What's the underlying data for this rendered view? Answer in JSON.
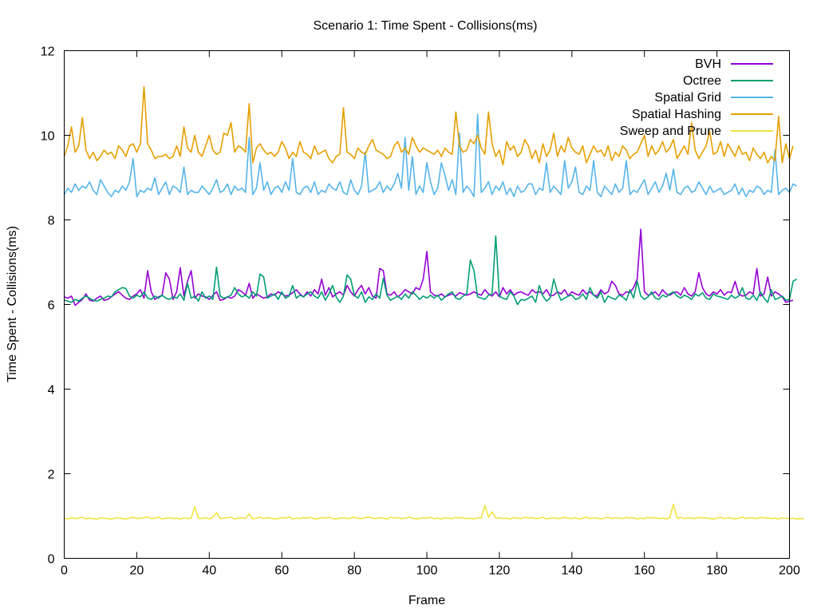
{
  "chart_data": {
    "type": "line",
    "title": "Scenario 1: Time Spent - Collisions(ms)",
    "xlabel": "Frame",
    "ylabel": "Time Spent - Collisions(ms)",
    "xlim": [
      0,
      200
    ],
    "ylim": [
      0,
      12
    ],
    "xticks": [
      0,
      20,
      40,
      60,
      80,
      100,
      120,
      140,
      160,
      180,
      200
    ],
    "yticks": [
      0,
      2,
      4,
      6,
      8,
      10,
      12
    ],
    "grid": false,
    "legend_position": "top-right",
    "x_step": 1,
    "series": [
      {
        "name": "BVH",
        "color": "#9400d3",
        "values": [
          6.18,
          6.15,
          6.2,
          5.98,
          6.05,
          6.12,
          6.25,
          6.1,
          6.08,
          6.15,
          6.2,
          6.1,
          6.12,
          6.18,
          6.25,
          6.3,
          6.22,
          6.15,
          6.12,
          6.2,
          6.25,
          6.35,
          6.15,
          6.8,
          6.3,
          6.12,
          6.18,
          6.22,
          6.75,
          6.6,
          6.12,
          6.3,
          6.87,
          6.2,
          6.55,
          6.8,
          6.15,
          6.25,
          6.2,
          6.18,
          6.12,
          6.22,
          6.3,
          6.1,
          6.12,
          6.18,
          6.15,
          6.2,
          6.35,
          6.3,
          6.22,
          6.5,
          6.15,
          6.25,
          6.2,
          6.15,
          6.18,
          6.25,
          6.22,
          6.3,
          6.25,
          6.2,
          6.22,
          6.28,
          6.35,
          6.25,
          6.18,
          6.3,
          6.2,
          6.35,
          6.25,
          6.6,
          6.22,
          6.4,
          6.18,
          6.25,
          6.3,
          6.22,
          6.45,
          6.3,
          6.2,
          6.35,
          6.45,
          6.25,
          6.4,
          6.2,
          6.15,
          6.85,
          6.8,
          6.25,
          6.22,
          6.3,
          6.18,
          6.25,
          6.35,
          6.3,
          6.25,
          6.4,
          6.35,
          6.6,
          7.25,
          6.3,
          6.22,
          6.2,
          6.25,
          6.18,
          6.22,
          6.25,
          6.2,
          6.28,
          6.25,
          6.22,
          6.25,
          6.3,
          6.25,
          6.22,
          6.35,
          6.25,
          6.2,
          6.3,
          6.18,
          6.4,
          6.25,
          6.35,
          6.22,
          6.28,
          6.3,
          6.25,
          6.22,
          6.35,
          6.28,
          6.3,
          6.25,
          6.35,
          6.2,
          6.22,
          6.3,
          6.25,
          6.35,
          6.2,
          6.3,
          6.25,
          6.22,
          6.35,
          6.25,
          6.3,
          6.22,
          6.2,
          6.35,
          6.25,
          6.3,
          6.55,
          6.45,
          6.25,
          6.22,
          6.3,
          6.28,
          6.4,
          6.6,
          7.78,
          6.3,
          6.22,
          6.25,
          6.3,
          6.2,
          6.35,
          6.25,
          6.22,
          6.28,
          6.3,
          6.22,
          6.4,
          6.25,
          6.2,
          6.3,
          6.75,
          6.4,
          6.25,
          6.2,
          6.3,
          6.25,
          6.35,
          6.22,
          6.3,
          6.28,
          6.55,
          6.25,
          6.2,
          6.22,
          6.3,
          6.25,
          6.85,
          6.2,
          6.25,
          6.65,
          6.2,
          6.3,
          6.25,
          6.18,
          6.05,
          6.08,
          6.1
        ]
      },
      {
        "name": "Octree",
        "color": "#009e73",
        "values": [
          6.1,
          6.08,
          6.05,
          6.12,
          6.08,
          6.15,
          6.2,
          6.15,
          6.1,
          6.08,
          6.12,
          6.15,
          6.2,
          6.18,
          6.3,
          6.35,
          6.4,
          6.38,
          6.2,
          6.15,
          6.22,
          6.18,
          6.3,
          6.15,
          6.12,
          6.2,
          6.15,
          6.22,
          6.15,
          6.12,
          6.18,
          6.15,
          6.25,
          6.1,
          6.5,
          6.15,
          6.2,
          6.08,
          6.3,
          6.15,
          6.2,
          6.12,
          6.88,
          6.2,
          6.15,
          6.18,
          6.22,
          6.4,
          6.25,
          6.18,
          6.22,
          6.15,
          6.3,
          6.2,
          6.72,
          6.65,
          6.15,
          6.2,
          6.25,
          6.12,
          6.3,
          6.15,
          6.2,
          6.45,
          6.15,
          6.22,
          6.18,
          6.25,
          6.3,
          6.2,
          6.15,
          6.3,
          6.1,
          6.25,
          6.45,
          6.18,
          6.05,
          6.2,
          6.7,
          6.6,
          6.22,
          6.15,
          6.3,
          6.05,
          6.18,
          6.12,
          6.25,
          6.15,
          6.62,
          6.22,
          6.1,
          6.15,
          6.2,
          6.12,
          6.25,
          6.15,
          6.3,
          6.22,
          6.12,
          6.2,
          6.15,
          6.22,
          6.15,
          6.22,
          6.1,
          6.18,
          6.25,
          6.3,
          6.15,
          6.12,
          6.2,
          6.25,
          7.05,
          6.8,
          6.18,
          6.15,
          6.12,
          6.22,
          6.25,
          7.62,
          6.2,
          6.15,
          6.12,
          6.3,
          6.2,
          6.0,
          6.12,
          6.1,
          6.15,
          6.2,
          6.05,
          6.45,
          6.2,
          6.08,
          6.15,
          6.6,
          6.3,
          6.1,
          6.15,
          6.2,
          6.22,
          6.12,
          6.15,
          6.25,
          6.12,
          6.4,
          6.22,
          6.15,
          6.3,
          6.05,
          6.2,
          6.15,
          6.12,
          6.22,
          6.18,
          6.1,
          6.35,
          6.15,
          6.55,
          6.2,
          6.12,
          6.18,
          6.3,
          6.15,
          6.12,
          6.22,
          6.18,
          6.25,
          6.3,
          6.2,
          6.15,
          6.22,
          6.18,
          6.12,
          6.25,
          6.2,
          6.28,
          6.15,
          6.12,
          6.25,
          6.2,
          6.18,
          6.15,
          6.12,
          6.22,
          6.15,
          6.2,
          6.4,
          6.15,
          6.12,
          6.22,
          6.1,
          6.3,
          6.15,
          6.05,
          6.35,
          6.12,
          6.15,
          6.2,
          6.1,
          6.12,
          6.55,
          6.6
        ]
      },
      {
        "name": "Spatial Grid",
        "color": "#56b4e9",
        "values": [
          8.6,
          8.75,
          8.65,
          8.85,
          8.7,
          8.8,
          8.75,
          8.9,
          8.7,
          8.6,
          8.95,
          8.8,
          8.65,
          8.55,
          8.7,
          8.65,
          8.8,
          8.7,
          8.9,
          9.45,
          8.55,
          8.7,
          8.65,
          8.75,
          8.7,
          9.0,
          8.6,
          8.75,
          8.9,
          8.6,
          8.8,
          8.75,
          8.65,
          9.25,
          8.6,
          8.7,
          8.65,
          8.65,
          8.8,
          8.7,
          8.6,
          8.75,
          8.95,
          8.65,
          8.7,
          8.85,
          8.6,
          8.8,
          8.7,
          8.75,
          8.65,
          9.95,
          8.6,
          8.75,
          9.35,
          8.7,
          8.9,
          8.6,
          8.75,
          8.8,
          8.65,
          8.9,
          8.7,
          9.45,
          8.65,
          8.6,
          8.75,
          8.8,
          8.65,
          8.9,
          8.6,
          8.7,
          8.65,
          8.85,
          8.75,
          8.7,
          8.9,
          8.65,
          8.6,
          8.95,
          8.7,
          8.6,
          8.8,
          9.6,
          8.65,
          8.7,
          8.75,
          8.9,
          8.65,
          8.8,
          8.7,
          8.85,
          9.1,
          8.75,
          9.95,
          8.7,
          9.5,
          8.6,
          8.8,
          8.65,
          9.35,
          8.9,
          8.6,
          8.75,
          9.35,
          9.05,
          8.7,
          8.95,
          8.6,
          10.05,
          8.65,
          8.8,
          8.7,
          8.55,
          10.5,
          8.65,
          8.75,
          8.9,
          8.6,
          8.8,
          8.7,
          8.9,
          8.6,
          8.75,
          8.55,
          8.8,
          8.65,
          8.7,
          8.85,
          8.85,
          8.6,
          8.75,
          8.7,
          9.35,
          8.65,
          8.8,
          8.7,
          8.6,
          9.4,
          8.75,
          8.9,
          9.25,
          8.65,
          8.6,
          8.8,
          8.7,
          9.4,
          8.65,
          8.55,
          8.8,
          8.7,
          8.6,
          8.85,
          8.65,
          8.75,
          9.4,
          8.6,
          8.7,
          8.65,
          8.8,
          8.95,
          8.6,
          8.75,
          8.9,
          8.65,
          8.8,
          9.1,
          8.7,
          9.2,
          8.65,
          8.6,
          8.75,
          8.8,
          8.65,
          8.7,
          8.9,
          8.75,
          8.6,
          8.8,
          8.65,
          8.7,
          8.75,
          8.6,
          8.65,
          8.7,
          8.85,
          8.6,
          8.75,
          8.55,
          8.7,
          8.65,
          8.8,
          8.75,
          8.6,
          8.7,
          8.65,
          9.65,
          8.6,
          8.7,
          8.75,
          8.65,
          8.85,
          8.8
        ]
      },
      {
        "name": "Spatial Hashing",
        "color": "#e69f00",
        "values": [
          9.5,
          9.75,
          10.2,
          9.6,
          9.75,
          10.42,
          9.65,
          9.45,
          9.6,
          9.4,
          9.5,
          9.65,
          9.55,
          9.6,
          9.45,
          9.75,
          9.65,
          9.5,
          9.75,
          9.8,
          9.6,
          9.8,
          11.15,
          9.8,
          9.65,
          9.45,
          9.5,
          9.5,
          9.55,
          9.45,
          9.5,
          9.75,
          9.5,
          10.2,
          9.7,
          9.6,
          10.0,
          9.6,
          9.5,
          9.75,
          10.0,
          9.65,
          9.55,
          9.6,
          10.05,
          10.0,
          10.3,
          9.6,
          9.75,
          9.7,
          9.6,
          10.75,
          9.35,
          9.7,
          9.8,
          9.65,
          9.55,
          9.6,
          9.5,
          9.6,
          9.85,
          9.7,
          9.45,
          9.6,
          9.5,
          9.85,
          9.6,
          9.55,
          9.45,
          9.75,
          9.55,
          9.6,
          9.65,
          9.45,
          9.35,
          9.5,
          9.55,
          10.65,
          9.6,
          9.55,
          9.45,
          9.7,
          9.6,
          9.55,
          9.75,
          9.9,
          9.65,
          9.6,
          9.55,
          9.45,
          9.5,
          9.75,
          9.85,
          9.6,
          9.7,
          9.55,
          9.95,
          9.75,
          9.6,
          9.7,
          9.65,
          9.6,
          9.55,
          9.65,
          9.5,
          9.7,
          9.6,
          9.55,
          10.55,
          9.75,
          9.6,
          9.65,
          9.9,
          9.8,
          10.0,
          9.7,
          9.55,
          10.55,
          9.8,
          9.5,
          9.65,
          9.3,
          9.85,
          9.65,
          9.75,
          9.5,
          9.6,
          9.9,
          9.75,
          9.45,
          9.65,
          9.35,
          9.8,
          9.5,
          9.65,
          10.05,
          9.5,
          9.75,
          9.6,
          9.95,
          9.7,
          9.6,
          9.55,
          9.75,
          9.35,
          9.55,
          9.75,
          9.6,
          9.65,
          9.5,
          9.75,
          9.4,
          9.6,
          9.5,
          9.75,
          9.65,
          9.45,
          9.55,
          9.6,
          9.8,
          10.0,
          9.5,
          9.75,
          9.55,
          9.65,
          9.85,
          9.6,
          9.7,
          9.9,
          9.45,
          9.6,
          9.75,
          9.55,
          10.3,
          9.65,
          9.45,
          9.6,
          9.75,
          10.1,
          9.55,
          9.6,
          9.85,
          9.5,
          9.8,
          9.65,
          9.5,
          9.75,
          9.55,
          9.6,
          9.4,
          9.7,
          9.55,
          9.45,
          9.6,
          9.35,
          9.5,
          9.4,
          10.45,
          9.35,
          9.8,
          9.45,
          9.75
        ]
      },
      {
        "name": "Sweep and Prune",
        "color": "#f0e442",
        "values": [
          0.95,
          0.93,
          0.96,
          0.94,
          0.95,
          0.97,
          0.93,
          0.95,
          0.94,
          0.92,
          0.96,
          0.95,
          0.94,
          0.93,
          0.95,
          0.96,
          0.94,
          0.93,
          0.95,
          0.97,
          0.94,
          0.95,
          0.96,
          0.98,
          0.94,
          0.95,
          0.97,
          0.93,
          0.95,
          0.96,
          0.94,
          0.95,
          0.93,
          0.96,
          0.94,
          0.95,
          1.22,
          0.95,
          0.94,
          0.96,
          0.93,
          0.97,
          1.08,
          0.94,
          0.95,
          0.96,
          0.97,
          0.93,
          0.95,
          0.96,
          0.94,
          1.05,
          0.93,
          0.95,
          0.97,
          0.94,
          0.96,
          0.95,
          0.93,
          0.94,
          0.96,
          0.95,
          0.98,
          0.93,
          0.95,
          0.94,
          0.96,
          0.95,
          0.97,
          0.93,
          0.94,
          0.96,
          0.95,
          0.97,
          0.94,
          0.93,
          0.95,
          0.96,
          0.94,
          0.95,
          0.97,
          0.95,
          0.94,
          0.96,
          0.98,
          0.95,
          0.94,
          0.96,
          0.95,
          0.93,
          0.97,
          0.95,
          0.96,
          0.94,
          0.95,
          0.97,
          0.95,
          0.93,
          0.94,
          0.96,
          0.95,
          0.97,
          0.94,
          0.95,
          0.93,
          0.96,
          0.95,
          0.94,
          0.97,
          0.95,
          0.96,
          0.94,
          0.95,
          0.93,
          0.96,
          0.95,
          1.25,
          0.97,
          1.1,
          0.95,
          0.96,
          0.94,
          0.95,
          0.93,
          0.96,
          0.95,
          0.94,
          0.97,
          0.95,
          0.96,
          0.94,
          0.95,
          0.97,
          0.93,
          0.95,
          0.96,
          0.94,
          0.95,
          0.97,
          0.95,
          0.94,
          0.96,
          0.93,
          0.95,
          0.97,
          0.94,
          0.96,
          0.95,
          0.93,
          0.95,
          0.97,
          0.94,
          0.96,
          0.95,
          0.94,
          0.97,
          0.95,
          0.96,
          0.93,
          0.95,
          0.94,
          0.97,
          0.95,
          0.96,
          0.94,
          0.95,
          0.93,
          0.96,
          1.28,
          0.95,
          0.97,
          0.94,
          0.96,
          0.95,
          0.94,
          0.97,
          0.95,
          0.96,
          0.94,
          0.93,
          0.95,
          0.97,
          0.94,
          0.96,
          0.95,
          0.93,
          0.95,
          0.97,
          0.94,
          0.96,
          0.95,
          0.94,
          0.97,
          0.95,
          0.96,
          0.94,
          0.95,
          0.93,
          0.96,
          0.95,
          0.94,
          0.95,
          0.93,
          0.94,
          0.93
        ]
      }
    ]
  }
}
